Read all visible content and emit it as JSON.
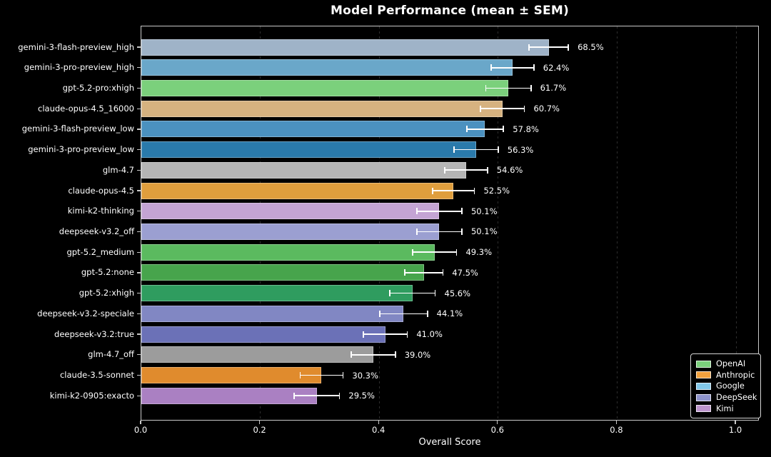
{
  "chart_data": {
    "type": "bar",
    "orientation": "horizontal",
    "title": "Model Performance (mean ± SEM)",
    "xlabel": "Overall Score",
    "xlim": [
      0.0,
      1.0384
    ],
    "xticks": [
      0.0,
      0.2,
      0.4,
      0.6,
      0.8,
      1.0
    ],
    "grid": "vertical-dashed",
    "background_color": "#000000",
    "text_color": "#ffffff",
    "errorbar_color": "#ffffff",
    "bars": [
      {
        "label": "gemini-3-flash-preview_high",
        "value": 0.685,
        "sem": 0.033,
        "display": "68.5%",
        "vendor": "Google",
        "color": "#9fb3c8"
      },
      {
        "label": "gemini-3-pro-preview_high",
        "value": 0.624,
        "sem": 0.036,
        "display": "62.4%",
        "vendor": "Google",
        "color": "#6aa7c9"
      },
      {
        "label": "gpt-5.2-pro:xhigh",
        "value": 0.617,
        "sem": 0.038,
        "display": "61.7%",
        "vendor": "OpenAI",
        "color": "#7bd07c"
      },
      {
        "label": "claude-opus-4.5_16000",
        "value": 0.607,
        "sem": 0.037,
        "display": "60.7%",
        "vendor": "Anthropic",
        "color": "#d6b280"
      },
      {
        "label": "gemini-3-flash-preview_low",
        "value": 0.578,
        "sem": 0.031,
        "display": "57.8%",
        "vendor": "Google",
        "color": "#4b91c0"
      },
      {
        "label": "gemini-3-pro-preview_low",
        "value": 0.563,
        "sem": 0.037,
        "display": "56.3%",
        "vendor": "Google",
        "color": "#2a7aab"
      },
      {
        "label": "glm-4.7",
        "value": 0.546,
        "sem": 0.036,
        "display": "54.6%",
        "vendor": "Other",
        "color": "#b5b5b5"
      },
      {
        "label": "claude-opus-4.5",
        "value": 0.525,
        "sem": 0.035,
        "display": "52.5%",
        "vendor": "Anthropic",
        "color": "#df9e3d"
      },
      {
        "label": "kimi-k2-thinking",
        "value": 0.501,
        "sem": 0.038,
        "display": "50.1%",
        "vendor": "Kimi",
        "color": "#c4a4d4"
      },
      {
        "label": "deepseek-v3.2_off",
        "value": 0.501,
        "sem": 0.038,
        "display": "50.1%",
        "vendor": "DeepSeek",
        "color": "#9b9fd1"
      },
      {
        "label": "gpt-5.2_medium",
        "value": 0.493,
        "sem": 0.037,
        "display": "49.3%",
        "vendor": "OpenAI",
        "color": "#5bba5f"
      },
      {
        "label": "gpt-5.2:none",
        "value": 0.475,
        "sem": 0.032,
        "display": "47.5%",
        "vendor": "OpenAI",
        "color": "#47a44c"
      },
      {
        "label": "gpt-5.2:xhigh",
        "value": 0.456,
        "sem": 0.038,
        "display": "45.6%",
        "vendor": "OpenAI",
        "color": "#2f9c5f"
      },
      {
        "label": "deepseek-v3.2-speciale",
        "value": 0.441,
        "sem": 0.04,
        "display": "44.1%",
        "vendor": "DeepSeek",
        "color": "#8187c3"
      },
      {
        "label": "deepseek-v3.2:true",
        "value": 0.41,
        "sem": 0.037,
        "display": "41.0%",
        "vendor": "DeepSeek",
        "color": "#6b71b7"
      },
      {
        "label": "glm-4.7_off",
        "value": 0.39,
        "sem": 0.037,
        "display": "39.0%",
        "vendor": "Other",
        "color": "#9c9c9c"
      },
      {
        "label": "claude-3.5-sonnet",
        "value": 0.303,
        "sem": 0.036,
        "display": "30.3%",
        "vendor": "Anthropic",
        "color": "#e08b2d"
      },
      {
        "label": "kimi-k2-0905:exacto",
        "value": 0.295,
        "sem": 0.038,
        "display": "29.5%",
        "vendor": "Kimi",
        "color": "#aa80c2"
      }
    ],
    "legend": {
      "position": "lower right",
      "entries": [
        {
          "label": "OpenAI",
          "color": "#7bd07c"
        },
        {
          "label": "Anthropic",
          "color": "#f2a13d"
        },
        {
          "label": "Google",
          "color": "#82c8ea"
        },
        {
          "label": "DeepSeek",
          "color": "#8e93cb"
        },
        {
          "label": "Kimi",
          "color": "#bd95cd"
        }
      ]
    }
  }
}
